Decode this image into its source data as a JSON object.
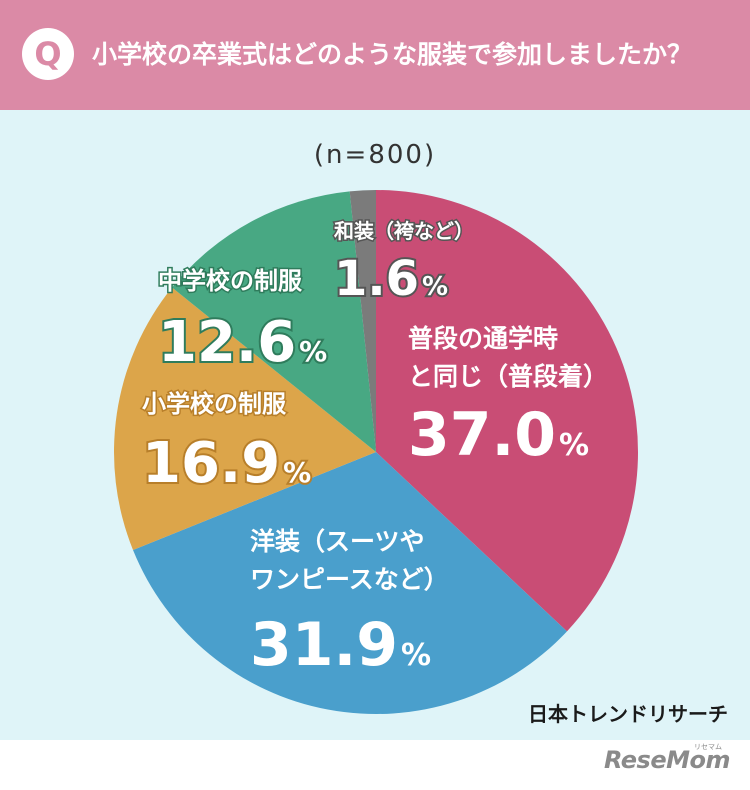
{
  "header": {
    "badge": "Q",
    "question": "小学校の卒業式はどのような服装で参加しましたか？"
  },
  "sample_size": "(n=800)",
  "credit": "日本トレンドリサーチ",
  "footer": {
    "logo": "ReseMom",
    "logo_sub": "リセマム"
  },
  "chart_data": {
    "type": "pie",
    "unit": "%",
    "slices": [
      {
        "label_lines": [
          "普段の通学時",
          "と同じ（普段着）"
        ],
        "value": 37.0,
        "value_text": "37.0",
        "color": "#c94d75"
      },
      {
        "label_lines": [
          "洋装（スーツや",
          "ワンピースなど）"
        ],
        "value": 31.9,
        "value_text": "31.9",
        "color": "#4a9fcc"
      },
      {
        "label_lines": [
          "小学校の制服"
        ],
        "value": 16.9,
        "value_text": "16.9",
        "color": "#dca54a"
      },
      {
        "label_lines": [
          "中学校の制服"
        ],
        "value": 12.6,
        "value_text": "12.6",
        "color": "#48a883"
      },
      {
        "label_lines": [
          "和装（袴など）"
        ],
        "value": 1.6,
        "value_text": "1.6",
        "color": "#7b7b7b"
      }
    ]
  }
}
